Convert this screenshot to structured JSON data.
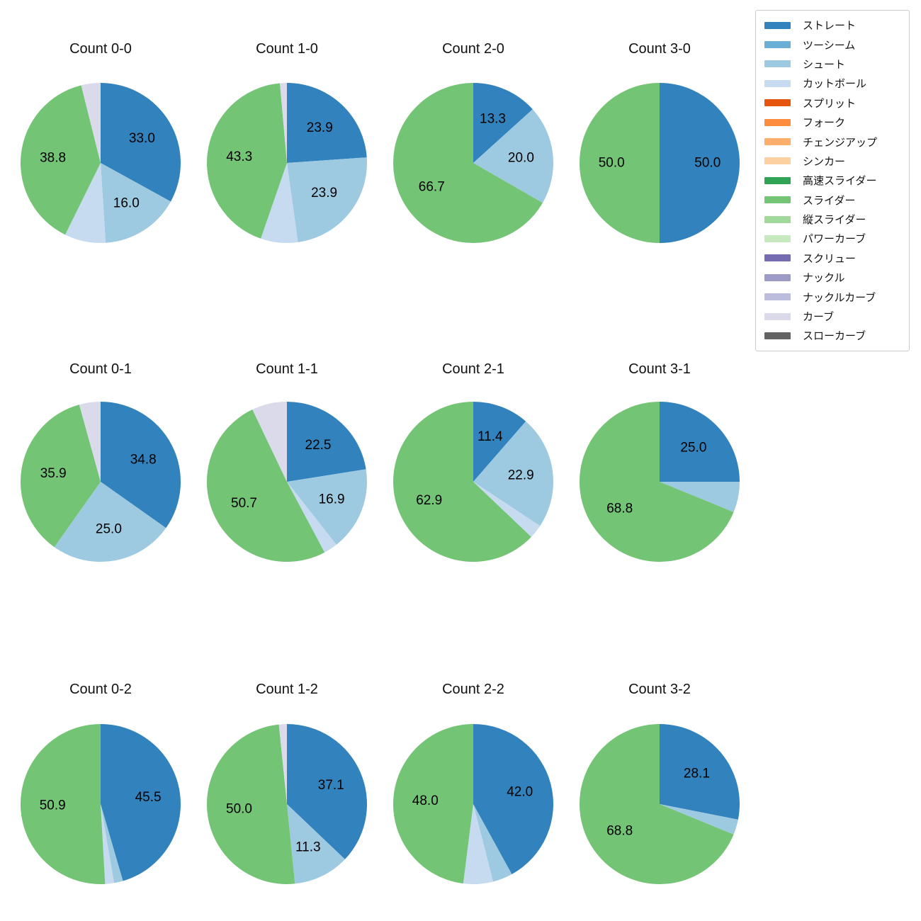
{
  "figure": {
    "background": "#ffffff"
  },
  "legend": {
    "border_color": "#cccccc",
    "position": "top-right",
    "items": [
      {
        "label": "ストレート",
        "color": "#3182bd"
      },
      {
        "label": "ツーシーム",
        "color": "#6baed6"
      },
      {
        "label": "シュート",
        "color": "#9ecae1"
      },
      {
        "label": "カットボール",
        "color": "#c6dbef"
      },
      {
        "label": "スプリット",
        "color": "#e6550d"
      },
      {
        "label": "フォーク",
        "color": "#fd8d3c"
      },
      {
        "label": "チェンジアップ",
        "color": "#fdae6b"
      },
      {
        "label": "シンカー",
        "color": "#fdd0a2"
      },
      {
        "label": "高速スライダー",
        "color": "#31a354"
      },
      {
        "label": "スライダー",
        "color": "#74c476"
      },
      {
        "label": "縦スライダー",
        "color": "#a1d99b"
      },
      {
        "label": "パワーカーブ",
        "color": "#c7e9c0"
      },
      {
        "label": "スクリュー",
        "color": "#756bb1"
      },
      {
        "label": "ナックル",
        "color": "#9e9ac8"
      },
      {
        "label": "ナックルカーブ",
        "color": "#bcbddc"
      },
      {
        "label": "カーブ",
        "color": "#dadaeb"
      },
      {
        "label": "スローカーブ",
        "color": "#636363"
      }
    ]
  },
  "chart_data": [
    {
      "type": "pie",
      "title": "Count 0-0",
      "start_angle": "top",
      "direction": "clockwise",
      "slices": [
        {
          "category": "ストレート",
          "value": 33.0,
          "pct_label": "33.0"
        },
        {
          "category": "シュート",
          "value": 16.0,
          "pct_label": "16.0"
        },
        {
          "category": "カットボール",
          "value": 8.3,
          "pct_label": null
        },
        {
          "category": "スライダー",
          "value": 38.8,
          "pct_label": "38.8"
        },
        {
          "category": "カーブ",
          "value": 3.9,
          "pct_label": null
        }
      ]
    },
    {
      "type": "pie",
      "title": "Count 1-0",
      "start_angle": "top",
      "direction": "clockwise",
      "slices": [
        {
          "category": "ストレート",
          "value": 23.9,
          "pct_label": "23.9"
        },
        {
          "category": "シュート",
          "value": 23.9,
          "pct_label": "23.9"
        },
        {
          "category": "カットボール",
          "value": 7.5,
          "pct_label": null
        },
        {
          "category": "スライダー",
          "value": 43.3,
          "pct_label": "43.3"
        },
        {
          "category": "カーブ",
          "value": 1.4,
          "pct_label": null
        }
      ]
    },
    {
      "type": "pie",
      "title": "Count 2-0",
      "start_angle": "top",
      "direction": "clockwise",
      "slices": [
        {
          "category": "ストレート",
          "value": 13.3,
          "pct_label": "13.3"
        },
        {
          "category": "シュート",
          "value": 20.0,
          "pct_label": "20.0"
        },
        {
          "category": "スライダー",
          "value": 66.7,
          "pct_label": "66.7"
        }
      ]
    },
    {
      "type": "pie",
      "title": "Count 3-0",
      "start_angle": "top",
      "direction": "clockwise",
      "slices": [
        {
          "category": "ストレート",
          "value": 50.0,
          "pct_label": "50.0"
        },
        {
          "category": "スライダー",
          "value": 50.0,
          "pct_label": "50.0"
        }
      ]
    },
    {
      "type": "pie",
      "title": "Count 0-1",
      "start_angle": "top",
      "direction": "clockwise",
      "slices": [
        {
          "category": "ストレート",
          "value": 34.8,
          "pct_label": "34.8"
        },
        {
          "category": "シュート",
          "value": 25.0,
          "pct_label": "25.0"
        },
        {
          "category": "スライダー",
          "value": 35.9,
          "pct_label": "35.9"
        },
        {
          "category": "カーブ",
          "value": 4.3,
          "pct_label": null
        }
      ]
    },
    {
      "type": "pie",
      "title": "Count 1-1",
      "start_angle": "top",
      "direction": "clockwise",
      "slices": [
        {
          "category": "ストレート",
          "value": 22.5,
          "pct_label": "22.5"
        },
        {
          "category": "シュート",
          "value": 16.9,
          "pct_label": "16.9"
        },
        {
          "category": "カットボール",
          "value": 2.8,
          "pct_label": null
        },
        {
          "category": "スライダー",
          "value": 50.7,
          "pct_label": "50.7"
        },
        {
          "category": "カーブ",
          "value": 7.1,
          "pct_label": null
        }
      ]
    },
    {
      "type": "pie",
      "title": "Count 2-1",
      "start_angle": "top",
      "direction": "clockwise",
      "slices": [
        {
          "category": "ストレート",
          "value": 11.4,
          "pct_label": "11.4"
        },
        {
          "category": "シュート",
          "value": 22.9,
          "pct_label": "22.9"
        },
        {
          "category": "カットボール",
          "value": 2.8,
          "pct_label": null
        },
        {
          "category": "スライダー",
          "value": 62.9,
          "pct_label": "62.9"
        }
      ]
    },
    {
      "type": "pie",
      "title": "Count 3-1",
      "start_angle": "top",
      "direction": "clockwise",
      "slices": [
        {
          "category": "ストレート",
          "value": 25.0,
          "pct_label": "25.0"
        },
        {
          "category": "シュート",
          "value": 6.2,
          "pct_label": null
        },
        {
          "category": "スライダー",
          "value": 68.8,
          "pct_label": "68.8"
        }
      ]
    },
    {
      "type": "pie",
      "title": "Count 0-2",
      "start_angle": "top",
      "direction": "clockwise",
      "slices": [
        {
          "category": "ストレート",
          "value": 45.5,
          "pct_label": "45.5"
        },
        {
          "category": "シュート",
          "value": 1.8,
          "pct_label": null
        },
        {
          "category": "カットボール",
          "value": 1.8,
          "pct_label": null
        },
        {
          "category": "スライダー",
          "value": 50.9,
          "pct_label": "50.9"
        }
      ]
    },
    {
      "type": "pie",
      "title": "Count 1-2",
      "start_angle": "top",
      "direction": "clockwise",
      "slices": [
        {
          "category": "ストレート",
          "value": 37.1,
          "pct_label": "37.1"
        },
        {
          "category": "シュート",
          "value": 11.3,
          "pct_label": "11.3"
        },
        {
          "category": "スライダー",
          "value": 50.0,
          "pct_label": "50.0"
        },
        {
          "category": "カーブ",
          "value": 1.6,
          "pct_label": null
        }
      ]
    },
    {
      "type": "pie",
      "title": "Count 2-2",
      "start_angle": "top",
      "direction": "clockwise",
      "slices": [
        {
          "category": "ストレート",
          "value": 42.0,
          "pct_label": "42.0"
        },
        {
          "category": "シュート",
          "value": 4.0,
          "pct_label": null
        },
        {
          "category": "カットボール",
          "value": 6.0,
          "pct_label": null
        },
        {
          "category": "スライダー",
          "value": 48.0,
          "pct_label": "48.0"
        }
      ]
    },
    {
      "type": "pie",
      "title": "Count 3-2",
      "start_angle": "top",
      "direction": "clockwise",
      "slices": [
        {
          "category": "ストレート",
          "value": 28.1,
          "pct_label": "28.1"
        },
        {
          "category": "シュート",
          "value": 3.1,
          "pct_label": null
        },
        {
          "category": "スライダー",
          "value": 68.8,
          "pct_label": "68.8"
        }
      ]
    }
  ]
}
